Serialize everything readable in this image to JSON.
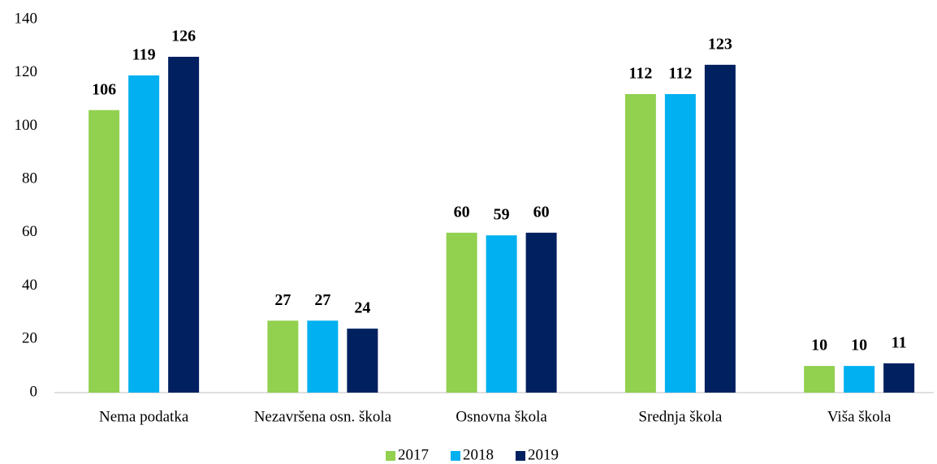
{
  "chart_data": {
    "type": "bar",
    "categories": [
      "Nema podatka",
      "Nezavršena osn. škola",
      "Osnovna škola",
      "Srednja škola",
      "Viša škola"
    ],
    "series": [
      {
        "name": "2017",
        "color": "#92d050",
        "values": [
          106,
          27,
          60,
          112,
          10
        ]
      },
      {
        "name": "2018",
        "color": "#00b0f0",
        "values": [
          119,
          27,
          59,
          112,
          10
        ]
      },
      {
        "name": "2019",
        "color": "#002060",
        "values": [
          126,
          24,
          60,
          123,
          11
        ]
      }
    ],
    "ylim": [
      0,
      140
    ],
    "yticks": [
      0,
      20,
      40,
      60,
      80,
      100,
      120,
      140
    ],
    "grid": false,
    "legend": "bottom"
  }
}
